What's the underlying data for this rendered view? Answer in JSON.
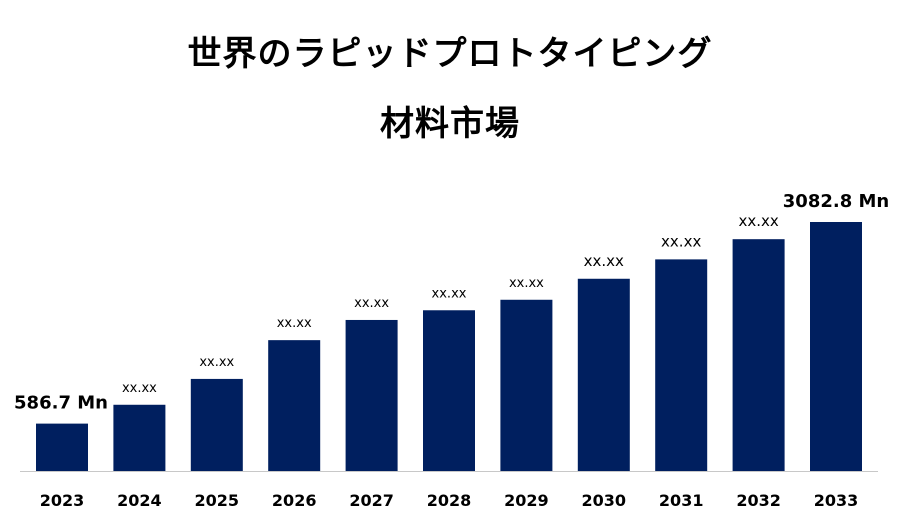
{
  "title_line1": "世界のラピッドプロトタイピング",
  "title_line2": "材料市場",
  "chart_data": {
    "type": "bar",
    "categories": [
      "2023",
      "2024",
      "2025",
      "2026",
      "2027",
      "2028",
      "2029",
      "2030",
      "2031",
      "2032",
      "2033"
    ],
    "values": [
      586.7,
      820,
      1140,
      1620,
      1870,
      1990,
      2120,
      2380,
      2620,
      2870,
      3082.8
    ],
    "data_labels": [
      "586.7 Mn",
      "xx.xx",
      "xx.xx",
      "xx.xx",
      "xx.xx",
      "xx.xx",
      "xx.xx",
      "xx.xx",
      "xx.xx",
      "xx.xx",
      "3082.8 Mn"
    ],
    "bar_color": "#001f5f",
    "ylim": [
      0,
      3082.8
    ],
    "grid": false,
    "legend": "none"
  }
}
